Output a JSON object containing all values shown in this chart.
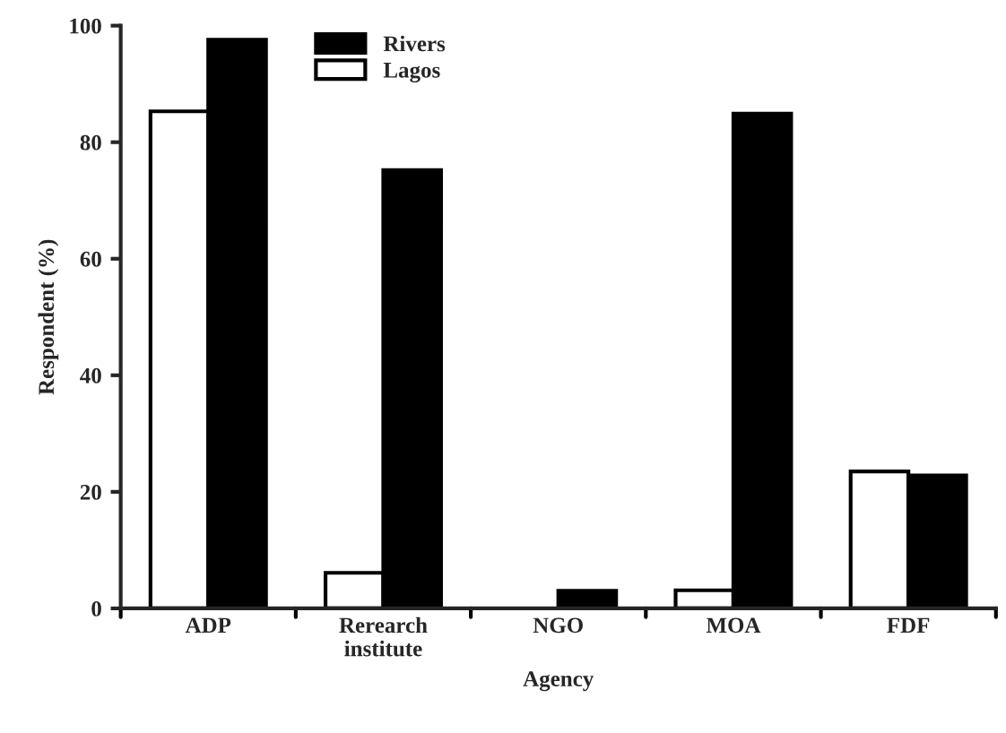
{
  "chart_data": {
    "type": "bar",
    "xlabel": "Agency",
    "ylabel": "Respondent (%)",
    "categories": [
      "ADP",
      "Rerearch\ninstitute",
      "NGO",
      "MOA",
      "FDF"
    ],
    "series": [
      {
        "name": "Lagos",
        "color": "#ffffff",
        "values": [
          85.3,
          6.1,
          null,
          3.1,
          23.5
        ]
      },
      {
        "name": "Rivers",
        "color": "#000000",
        "values": [
          97.6,
          75.2,
          3.0,
          84.9,
          22.8
        ]
      }
    ],
    "ylim": [
      0,
      100
    ],
    "yticks": [
      0,
      20,
      40,
      60,
      80,
      100
    ],
    "grid": false,
    "legend": "top left"
  }
}
